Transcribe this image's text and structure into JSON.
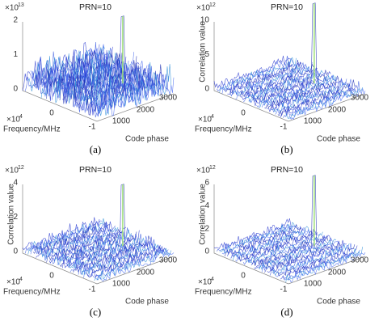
{
  "panels": [
    {
      "title": "PRN=10",
      "z_multiplier": "×10",
      "z_exponent": "13",
      "z_ticks": [
        "2",
        "1",
        "0"
      ],
      "x_ticks": [
        "0",
        "-1"
      ],
      "x_multiplier": "×10",
      "x_exponent": "4",
      "y_ticks": [
        "1000",
        "2000",
        "3000"
      ],
      "x_label": "Frequency/MHz",
      "y_label": "Code phase",
      "caption": "(a)"
    },
    {
      "title": "PRN=10",
      "z_multiplier": "×10",
      "z_exponent": "12",
      "z_ticks": [
        "10",
        "5",
        "0"
      ],
      "x_ticks": [
        "0",
        "-1"
      ],
      "x_multiplier": "×10",
      "x_exponent": "4",
      "y_ticks": [
        "1000",
        "2000",
        "3000"
      ],
      "x_label": "Frequency/MHz",
      "y_label": "Code phase",
      "z_label": "Correlation value",
      "caption": "(b)"
    },
    {
      "title": "PRN=10",
      "z_multiplier": "×10",
      "z_exponent": "12",
      "z_ticks": [
        "4",
        "2",
        "0"
      ],
      "x_ticks": [
        "0",
        "-1"
      ],
      "x_multiplier": "×10",
      "x_exponent": "4",
      "y_ticks": [
        "1000",
        "2000",
        "3000"
      ],
      "x_label": "Frequency/MHz",
      "y_label": "Code phase",
      "z_label": "Correlation value",
      "caption": "(c)"
    },
    {
      "title": "PRN=10",
      "z_multiplier": "×10",
      "z_exponent": "12",
      "z_ticks": [
        "6",
        "4",
        "2",
        "0"
      ],
      "x_ticks": [
        "0",
        "-1"
      ],
      "x_multiplier": "×10",
      "x_exponent": "4",
      "y_ticks": [
        "1000",
        "2000",
        "3000"
      ],
      "x_label": "Frequency/MHz",
      "y_label": "Code phase",
      "z_label": "Correlation value",
      "caption": "(d)"
    }
  ]
}
